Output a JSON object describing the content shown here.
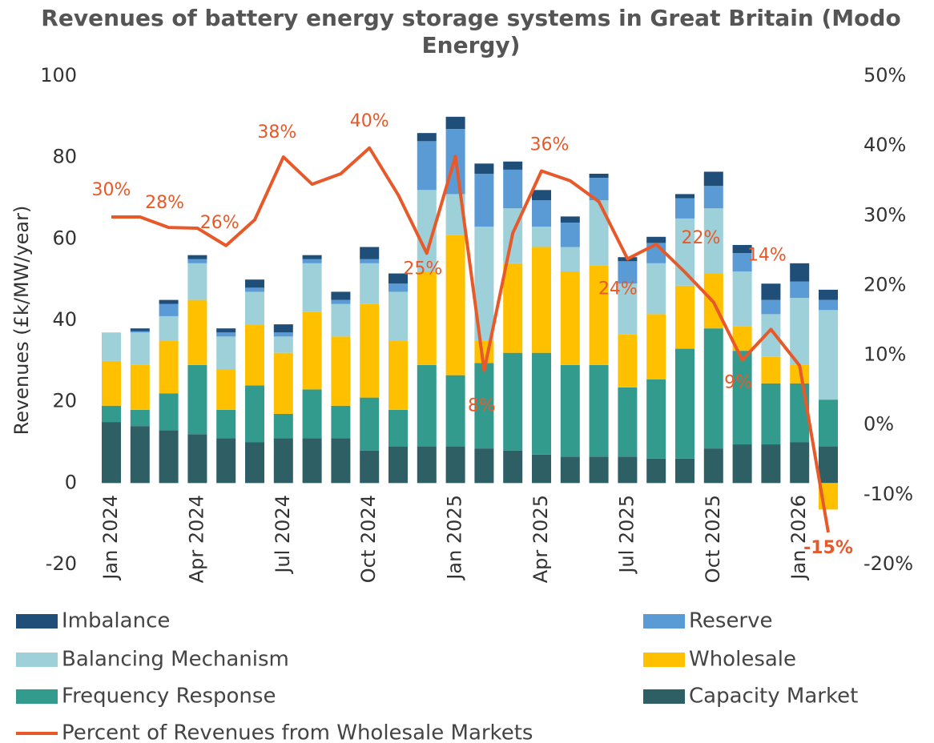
{
  "chart_data": {
    "type": "bar",
    "stacked": true,
    "title": "Revenues of battery energy storage systems in Great Britain (Modo Energy)",
    "y_label": "Revenues (£k/MW/year)",
    "categories": [
      "Jan 2024",
      null,
      null,
      "Apr 2024",
      null,
      null,
      "Jul 2024",
      null,
      null,
      "Oct 2024",
      null,
      null,
      "Jan 2025",
      null,
      null,
      "Apr 2025",
      null,
      null,
      "Jul 2025",
      null,
      null,
      "Oct 2025",
      null,
      null,
      "Jan 2026",
      null
    ],
    "ylim": [
      -20,
      100
    ],
    "yticks": [
      -20,
      0,
      20,
      40,
      60,
      80,
      100
    ],
    "y2lim": [
      -20,
      50
    ],
    "y2ticks": [
      {
        "value": -20,
        "label": "-20%"
      },
      {
        "value": -10,
        "label": "-10%"
      },
      {
        "value": 0,
        "label": "0%"
      },
      {
        "value": 10,
        "label": "10%"
      },
      {
        "value": 20,
        "label": "20%"
      },
      {
        "value": 30,
        "label": "30%"
      },
      {
        "value": 40,
        "label": "40%"
      },
      {
        "value": 50,
        "label": "50%"
      }
    ],
    "series": [
      {
        "name": "Capacity Market",
        "color": "#2d5f64",
        "values": [
          15,
          14,
          13,
          12,
          11,
          10,
          11,
          11,
          11,
          8,
          9,
          9,
          9,
          8.5,
          8,
          7,
          6.5,
          6.5,
          6.5,
          6,
          6,
          8.5,
          9.5,
          9.5,
          10,
          9
        ]
      },
      {
        "name": "Frequency Response",
        "color": "#339a8e",
        "values": [
          4,
          4,
          9,
          17,
          7,
          14,
          6,
          12,
          8,
          13,
          9,
          20,
          17.5,
          21,
          24,
          25,
          22.5,
          22.5,
          17,
          19.5,
          27,
          29.5,
          23,
          15,
          14.5,
          11.5
        ]
      },
      {
        "name": "Wholesale",
        "color": "#ffc000",
        "values": [
          11,
          11,
          13,
          16,
          10,
          15,
          15,
          19,
          17,
          23,
          17,
          23,
          34.5,
          5.5,
          22,
          26,
          23,
          24.5,
          13,
          16,
          15.5,
          13.5,
          6,
          6.5,
          4.5,
          -6.5
        ]
      },
      {
        "name": "Balancing Mechanism",
        "color": "#9dd0d8",
        "values": [
          7,
          8,
          6,
          9,
          8,
          8,
          4,
          12,
          8,
          10,
          12,
          20,
          10,
          28,
          13.5,
          5,
          6,
          16,
          12.5,
          12.5,
          16.5,
          16,
          13.5,
          10.5,
          16.5,
          22
        ]
      },
      {
        "name": "Reserve",
        "color": "#5b9bd5",
        "values": [
          0,
          0.3,
          3,
          1,
          1,
          1,
          1,
          1,
          1,
          1,
          2,
          12,
          16,
          13,
          9.5,
          6.5,
          6,
          5.5,
          5.5,
          5,
          5,
          5.5,
          4.5,
          3.5,
          4,
          2.5
        ]
      },
      {
        "name": "Imbalance",
        "color": "#1f4e79",
        "values": [
          0,
          0.7,
          1,
          1,
          1,
          2,
          2,
          1,
          2,
          3,
          2.5,
          2,
          3,
          2.5,
          2,
          2.5,
          1.5,
          1,
          1,
          1.5,
          1,
          3.5,
          2,
          4,
          4.5,
          2.5
        ]
      },
      {
        "name": "Percent of Revenues from Wholesale Markets",
        "type": "line",
        "axis": "y2",
        "color": "#e8592a",
        "values": [
          29.8,
          29.8,
          28.3,
          28.2,
          25.7,
          29.4,
          38.4,
          34.5,
          36,
          39.7,
          33,
          24.6,
          38.5,
          7.8,
          27.5,
          36.4,
          35,
          32,
          23.8,
          25.9,
          21.9,
          17.6,
          9.3,
          13.7,
          8.5,
          -15.4
        ],
        "value_labels": [
          "30%",
          null,
          "28%",
          null,
          "26%",
          null,
          "38%",
          null,
          null,
          "40%",
          null,
          "25%",
          null,
          "8%",
          null,
          "36%",
          null,
          null,
          "24%",
          null,
          "22%",
          null,
          "9%",
          "14%",
          null,
          "-15%"
        ]
      }
    ]
  }
}
